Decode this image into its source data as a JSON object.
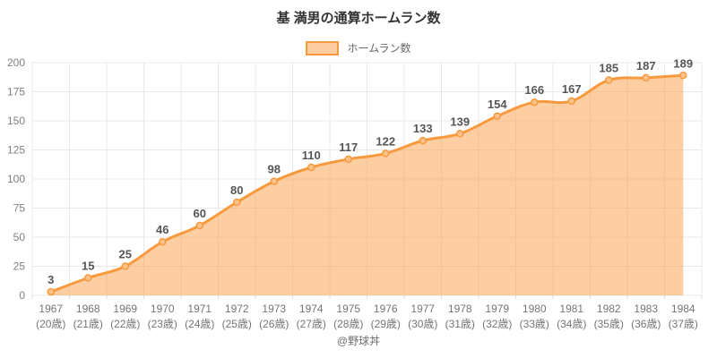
{
  "title": "基 満男の通算ホームラン数",
  "footer": "@野球丼",
  "colors": {
    "line": "#f79a3e",
    "fill": "rgba(249,157,69,0.5)",
    "point_fill": "#fbc28b",
    "grid": "#e8e8e8",
    "axis_tick": "#dddddd",
    "title_text": "#333333",
    "value_label_text": "#555555",
    "y_tick_text": "#7f7f7f",
    "x_tick_text": "#757575",
    "legend_text": "#666666"
  },
  "chart_data": {
    "type": "area",
    "title": "基 満男の通算ホームラン数",
    "legend": [
      "ホームラン数"
    ],
    "legend_position": "top",
    "categories": [
      "1967",
      "1968",
      "1969",
      "1970",
      "1971",
      "1972",
      "1973",
      "1974",
      "1975",
      "1976",
      "1977",
      "1978",
      "1979",
      "1980",
      "1981",
      "1982",
      "1983",
      "1984"
    ],
    "category_sublabels": [
      "(20歳)",
      "(21歳)",
      "(22歳)",
      "(23歳)",
      "(24歳)",
      "(25歳)",
      "(26歳)",
      "(27歳)",
      "(28歳)",
      "(29歳)",
      "(30歳)",
      "(31歳)",
      "(32歳)",
      "(33歳)",
      "(34歳)",
      "(35歳)",
      "(36歳)",
      "(37歳)"
    ],
    "values": [
      3,
      15,
      25,
      46,
      60,
      80,
      98,
      110,
      117,
      122,
      133,
      139,
      154,
      166,
      167,
      185,
      187,
      189
    ],
    "xlabel": "",
    "ylabel": "",
    "ylim": [
      0,
      200
    ],
    "ytick_step": 25,
    "grid": true,
    "data_labels": true
  }
}
